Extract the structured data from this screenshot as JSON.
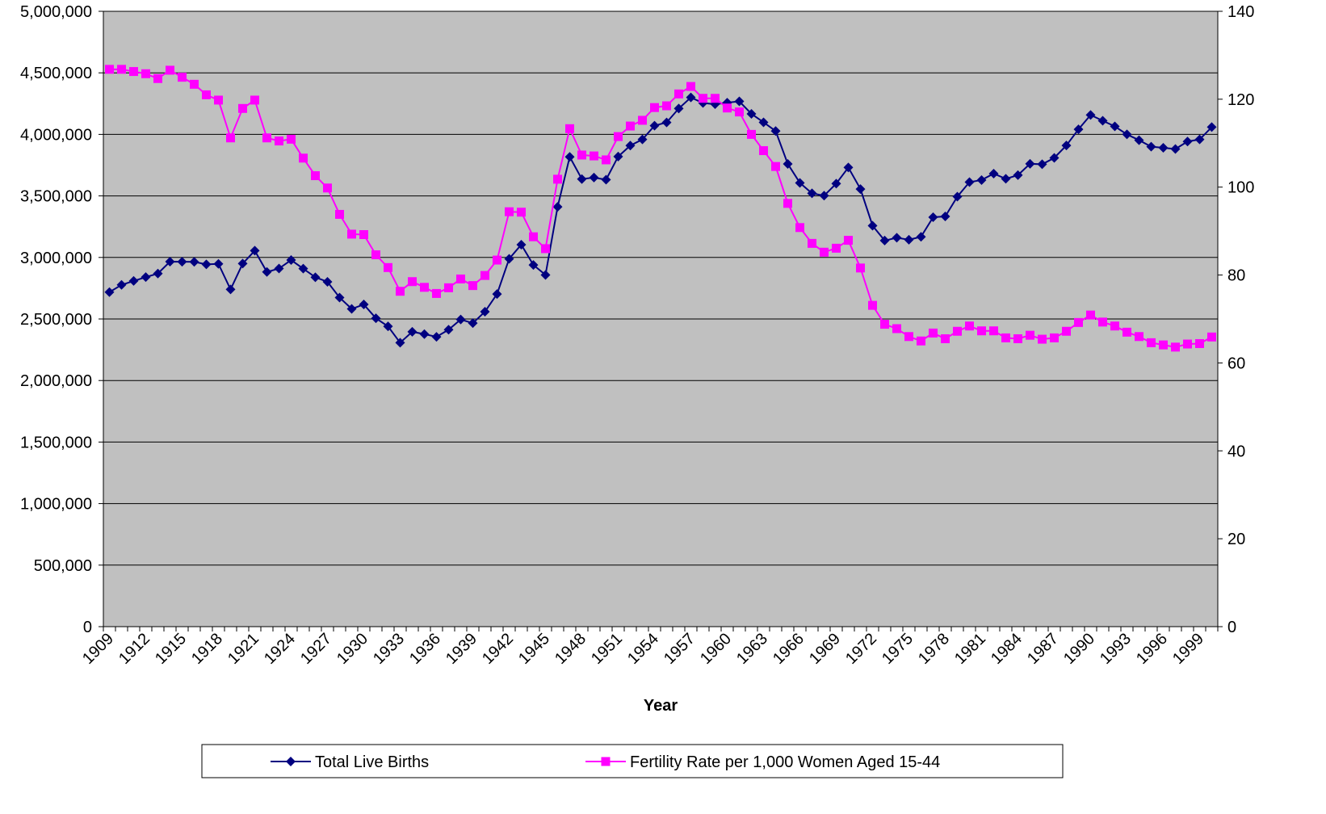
{
  "chart_data": {
    "type": "line",
    "x_label": "Year",
    "categories": [
      "1909",
      null,
      null,
      "1912",
      null,
      null,
      "1915",
      null,
      null,
      "1918",
      null,
      null,
      "1921",
      null,
      null,
      "1924",
      null,
      null,
      "1927",
      null,
      null,
      "1930",
      null,
      null,
      "1933",
      null,
      null,
      "1936",
      null,
      null,
      "1939",
      null,
      null,
      "1942",
      null,
      null,
      "1945",
      null,
      null,
      "1948",
      null,
      null,
      "1951",
      null,
      null,
      "1954",
      null,
      null,
      "1957",
      null,
      null,
      "1960",
      null,
      null,
      "1963",
      null,
      null,
      "1966",
      null,
      null,
      "1969",
      null,
      null,
      "1972",
      null,
      null,
      "1975",
      null,
      null,
      "1978",
      null,
      null,
      "1981",
      null,
      null,
      "1984",
      null,
      null,
      "1987",
      null,
      null,
      "1990",
      null,
      null,
      "1993",
      null,
      null,
      "1996",
      null,
      null,
      "1999",
      null
    ],
    "series": [
      {
        "name": "Total Live Births",
        "color": "#000080",
        "marker": "diamond",
        "axis": "y",
        "values": [
          2718000,
          2777000,
          2809000,
          2840000,
          2869000,
          2966000,
          2965000,
          2964000,
          2944000,
          2948000,
          2740000,
          2950000,
          3055000,
          2882000,
          2910000,
          2979000,
          2909000,
          2839000,
          2802000,
          2674000,
          2582000,
          2618000,
          2506000,
          2440000,
          2307000,
          2396000,
          2377000,
          2355000,
          2413000,
          2496000,
          2466000,
          2559000,
          2703000,
          2989000,
          3104000,
          2939000,
          2858000,
          3411000,
          3817000,
          3637000,
          3649000,
          3632000,
          3820000,
          3909000,
          3959000,
          4071000,
          4097000,
          4210000,
          4300000,
          4255000,
          4245000,
          4258000,
          4268000,
          4167000,
          4098000,
          4027000,
          3760000,
          3606000,
          3521000,
          3502000,
          3600000,
          3731000,
          3556000,
          3258000,
          3137000,
          3160000,
          3144000,
          3168000,
          3327000,
          3333000,
          3494000,
          3612000,
          3629000,
          3681000,
          3639000,
          3669000,
          3761000,
          3757000,
          3809000,
          3910000,
          4041000,
          4158000,
          4111000,
          4065000,
          4000000,
          3953000,
          3900000,
          3891000,
          3881000,
          3942000,
          3959000,
          4059000
        ]
      },
      {
        "name": "Fertility Rate per 1,000 Women Aged 15-44",
        "color": "#ff00ff",
        "marker": "square",
        "axis": "y2",
        "values": [
          126.8,
          126.8,
          126.3,
          125.8,
          124.7,
          126.6,
          125.0,
          123.4,
          121.0,
          119.8,
          111.2,
          117.9,
          119.8,
          111.2,
          110.5,
          110.9,
          106.6,
          102.6,
          99.8,
          93.8,
          89.3,
          89.2,
          84.6,
          81.7,
          76.3,
          78.5,
          77.2,
          75.8,
          77.1,
          79.1,
          77.6,
          79.9,
          83.4,
          94.4,
          94.3,
          88.7,
          86.0,
          101.8,
          113.3,
          107.3,
          107.1,
          106.2,
          111.5,
          113.9,
          115.2,
          118.1,
          118.5,
          121.2,
          122.9,
          120.2,
          120.2,
          118.0,
          117.1,
          112.0,
          108.3,
          104.7,
          96.3,
          90.8,
          87.2,
          85.2,
          86.1,
          87.9,
          81.6,
          73.1,
          68.8,
          67.8,
          66.0,
          65.0,
          66.8,
          65.5,
          67.2,
          68.4,
          67.3,
          67.3,
          65.7,
          65.5,
          66.3,
          65.4,
          65.7,
          67.2,
          69.2,
          70.9,
          69.3,
          68.4,
          67.0,
          66.0,
          64.6,
          64.1,
          63.6,
          64.3,
          64.4,
          65.9
        ]
      }
    ],
    "ylim": [
      0,
      5000000
    ],
    "yticks": [
      0,
      {
        "value": 500000,
        "label": "500,000"
      },
      {
        "value": 1000000,
        "label": "1,000,000"
      },
      {
        "value": 1500000,
        "label": "1,500,000"
      },
      {
        "value": 2000000,
        "label": "2,000,000"
      },
      {
        "value": 2500000,
        "label": "2,500,000"
      },
      {
        "value": 3000000,
        "label": "3,000,000"
      },
      {
        "value": 3500000,
        "label": "3,500,000"
      },
      {
        "value": 4000000,
        "label": "4,000,000"
      },
      {
        "value": 4500000,
        "label": "4,500,000"
      },
      {
        "value": 5000000,
        "label": "5,000,000"
      }
    ],
    "y2lim": [
      0,
      140
    ],
    "y2ticks": [
      0,
      20,
      40,
      60,
      80,
      100,
      120,
      140
    ],
    "grid": true,
    "plot_background": "#c0c0c0",
    "legend": "bottom"
  }
}
